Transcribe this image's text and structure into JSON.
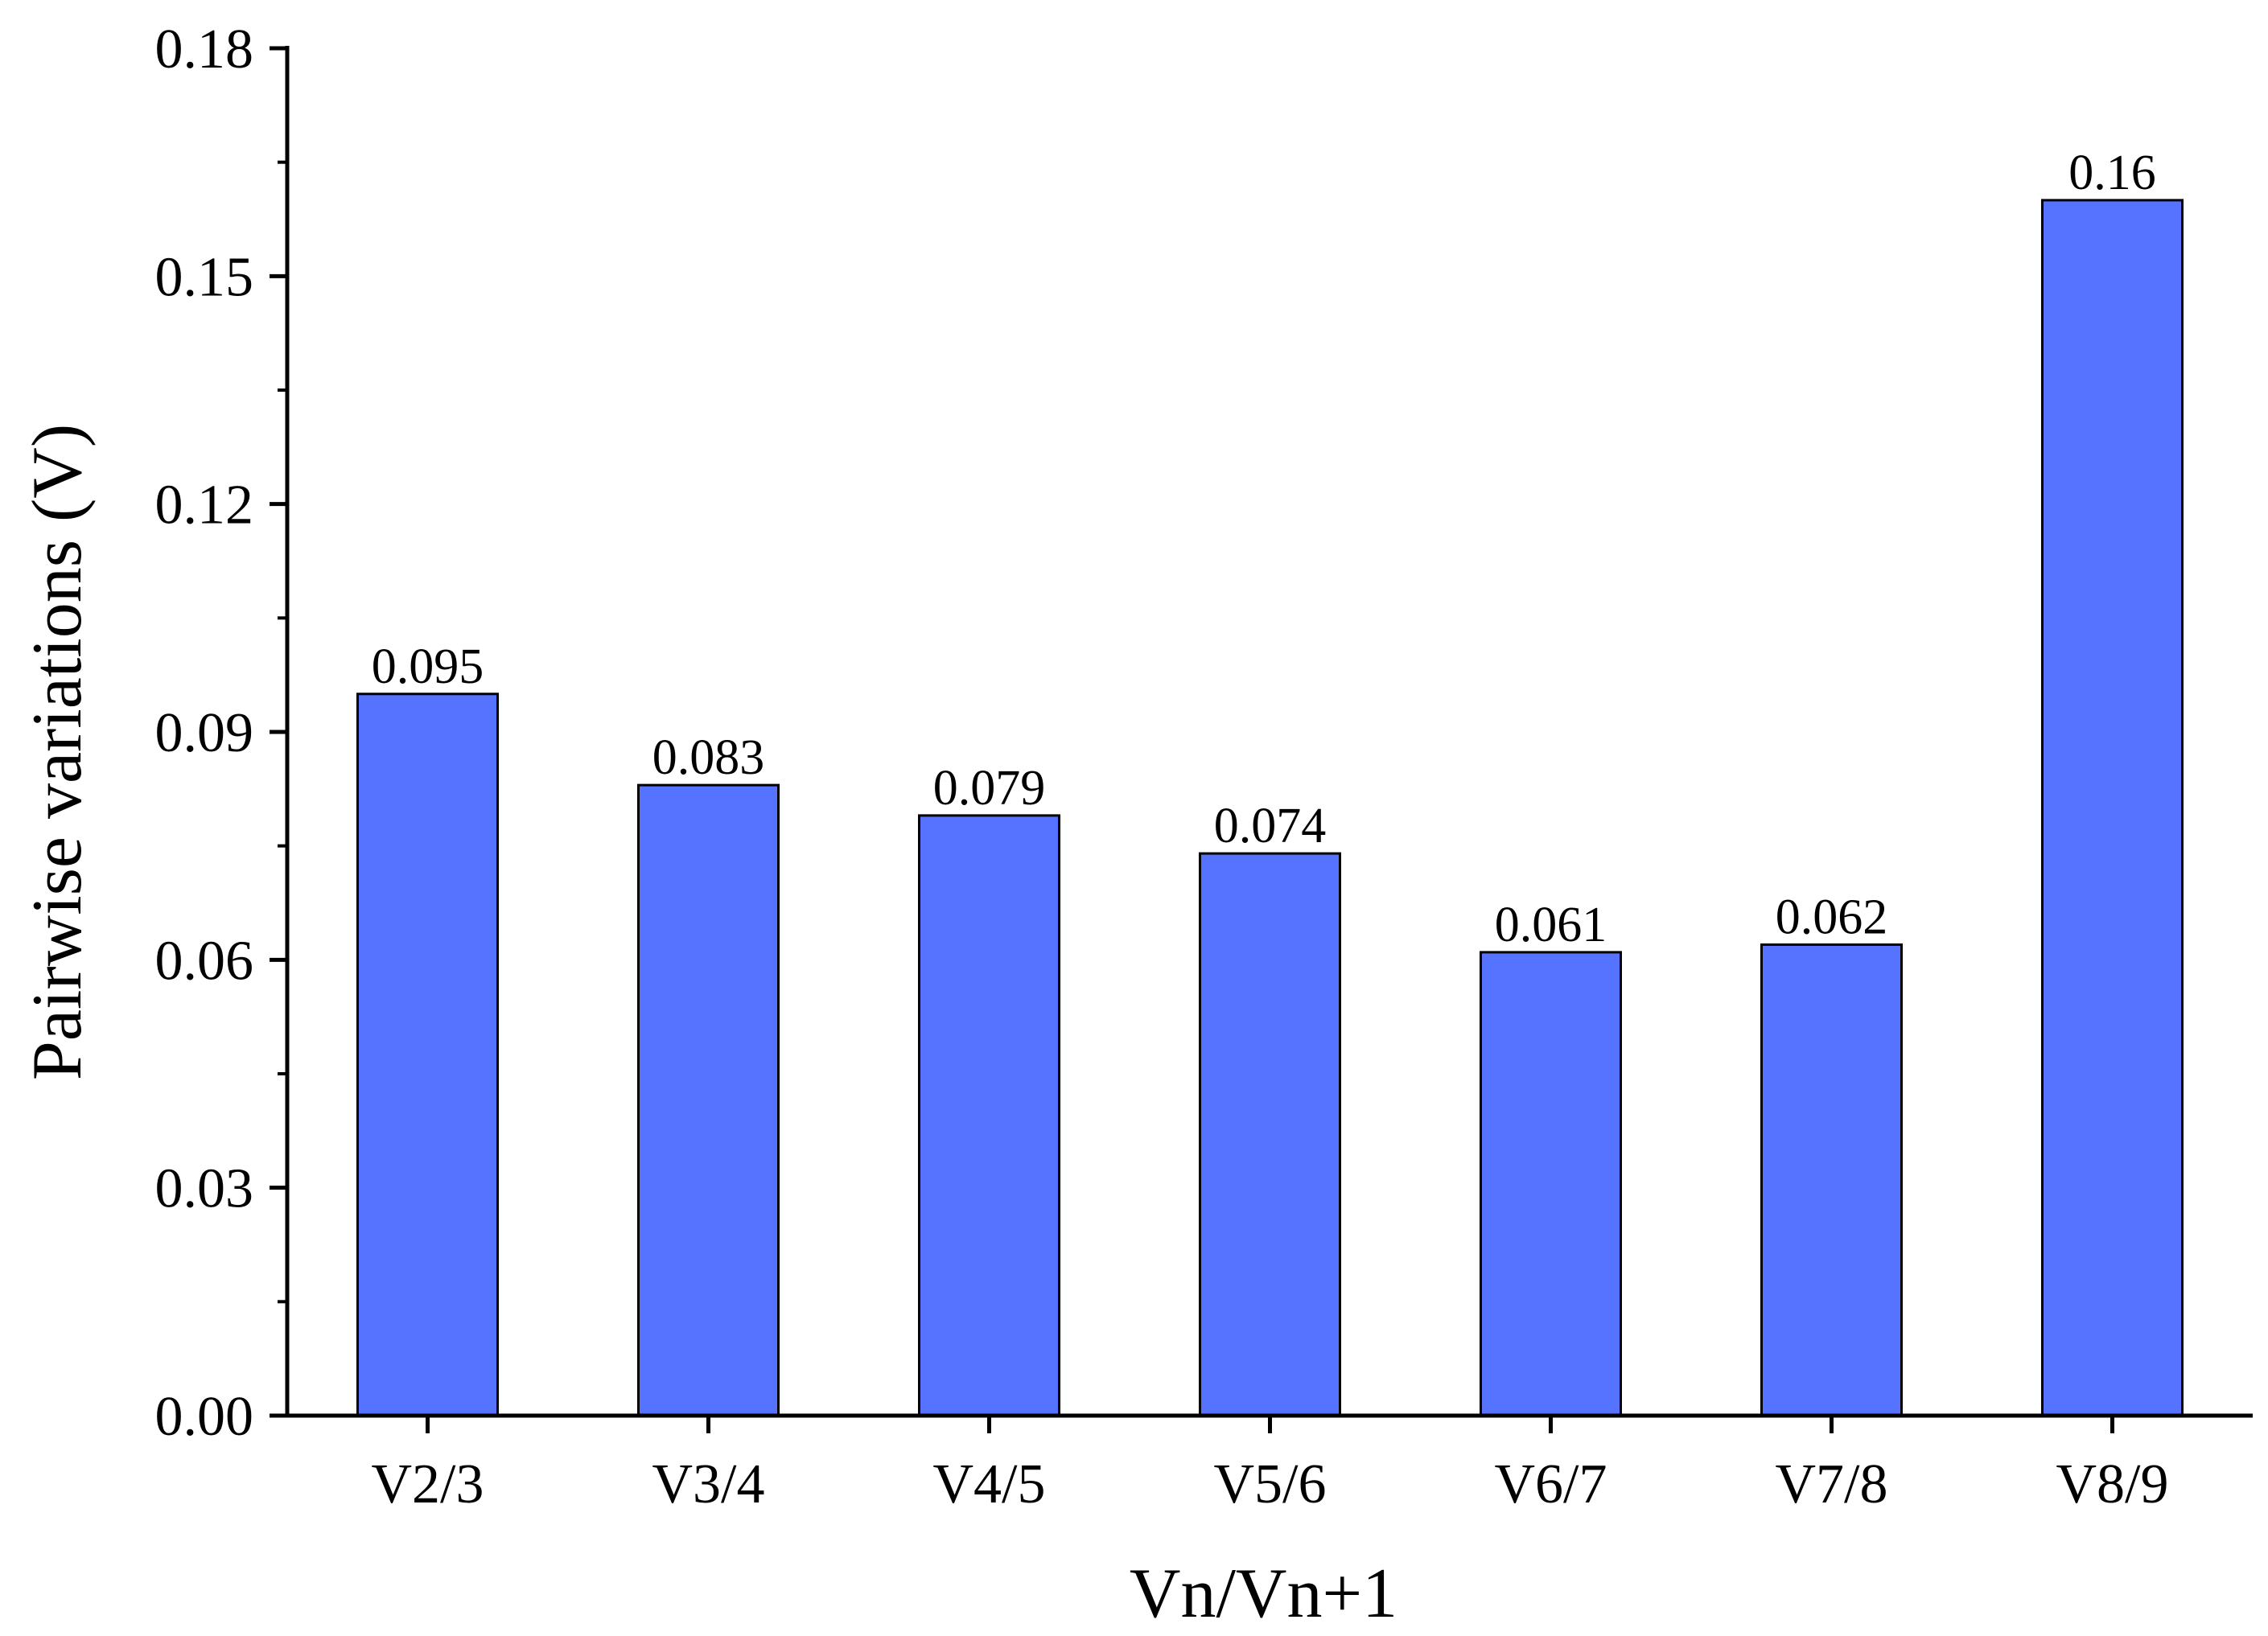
{
  "chart_data": {
    "type": "bar",
    "categories": [
      "V2/3",
      "V3/4",
      "V4/5",
      "V5/6",
      "V6/7",
      "V7/8",
      "V8/9"
    ],
    "values": [
      0.095,
      0.083,
      0.079,
      0.074,
      0.061,
      0.062,
      0.16
    ],
    "data_labels": [
      "0.095",
      "0.083",
      "0.079",
      "0.074",
      "0.061",
      "0.062",
      "0.16"
    ],
    "xlabel": "Vn/Vn+1",
    "ylabel": "Pairwise variations (V)",
    "ylim": [
      0,
      0.18
    ],
    "yticks": [
      0,
      0.03,
      0.06,
      0.09,
      0.12,
      0.15,
      0.18
    ],
    "ytick_labels": [
      "0.00",
      "0.03",
      "0.06",
      "0.09",
      "0.12",
      "0.15",
      "0.18"
    ],
    "grid": false,
    "bar_color": "#5573FF",
    "bar_edge_color": "#000000"
  }
}
